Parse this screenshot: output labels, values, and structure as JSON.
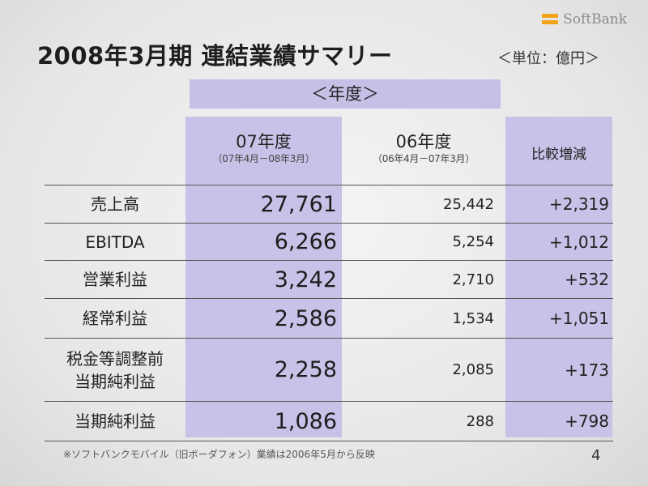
{
  "logo": {
    "text": "SoftBank",
    "accent": "#f2a51a"
  },
  "title": "2008年3月期 連結業績サマリー",
  "unit": "＜単位：億円＞",
  "group_header": "＜年度＞",
  "columns": {
    "current": {
      "main": "07年度",
      "sub": "（07年4月－08年3月）"
    },
    "previous": {
      "main": "06年度",
      "sub": "（06年4月－07年3月）"
    },
    "diff": "比較増減"
  },
  "rows": [
    {
      "label": "売上高",
      "current": "27,761",
      "previous": "25,442",
      "diff": "+2,319"
    },
    {
      "label": "EBITDA",
      "current": "6,266",
      "previous": "5,254",
      "diff": "+1,012"
    },
    {
      "label": "営業利益",
      "current": "3,242",
      "previous": "2,710",
      "diff": "+532"
    },
    {
      "label": "経常利益",
      "current": "2,586",
      "previous": "1,534",
      "diff": "+1,051"
    },
    {
      "label_line1": "税金等調整前",
      "label_line2": "当期純利益",
      "current": "2,258",
      "previous": "2,085",
      "diff": "+173"
    },
    {
      "label": "当期純利益",
      "current": "1,086",
      "previous": "288",
      "diff": "+798"
    }
  ],
  "footnote": "※ソフトバンクモバイル（旧ボーダフォン）業績は2006年5月から反映",
  "page_number": "4",
  "colors": {
    "highlight": "#c8bfe6",
    "background": "#ebebeb"
  }
}
